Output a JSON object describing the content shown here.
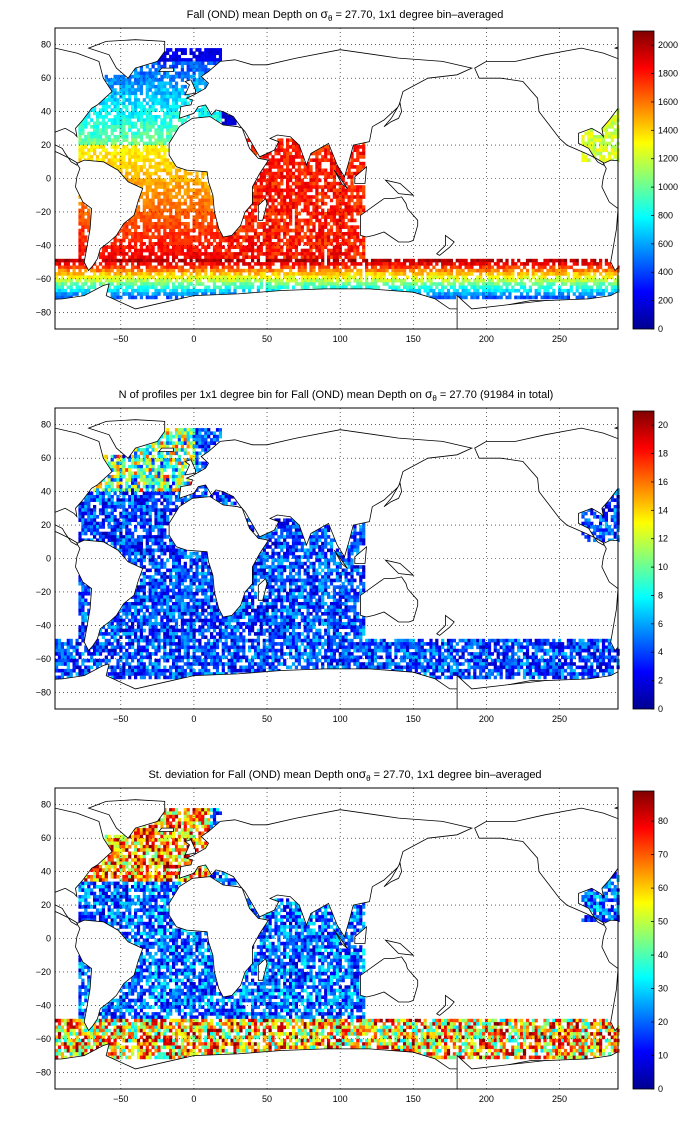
{
  "figure": {
    "land_color": "#ffffff",
    "coast_color": "#000000",
    "grid_color": "#000000"
  },
  "chart_data": [
    {
      "type": "heatmap",
      "title_pre": "Fall (OND) mean Depth on ",
      "title_sym": "σ",
      "title_sub": "θ",
      "title_post": " = 27.70, 1x1 degree bin–averaged",
      "xlabel": "",
      "ylabel": "",
      "xlim": [
        -95,
        290
      ],
      "ylim": [
        -90,
        90
      ],
      "xticks": [
        -50,
        0,
        50,
        100,
        150,
        200,
        250
      ],
      "yticks": [
        -80,
        -60,
        -40,
        -20,
        0,
        20,
        40,
        60,
        80
      ],
      "grid": true,
      "colorbar": {
        "range": [
          0,
          2100
        ],
        "ticks": [
          0,
          200,
          400,
          600,
          800,
          1000,
          1200,
          1400,
          1600,
          1800,
          2000
        ],
        "colormap": "jet",
        "placement": "right"
      },
      "field": "depth"
    },
    {
      "type": "heatmap",
      "title_pre": "N of profiles per 1x1 degree bin for Fall (OND) mean Depth on ",
      "title_sym": "σ",
      "title_sub": "θ",
      "title_post": " = 27.70 (91984 in total)",
      "xlabel": "",
      "ylabel": "",
      "xlim": [
        -95,
        290
      ],
      "ylim": [
        -90,
        90
      ],
      "xticks": [
        -50,
        0,
        50,
        100,
        150,
        200,
        250
      ],
      "yticks": [
        -80,
        -60,
        -40,
        -20,
        0,
        20,
        40,
        60,
        80
      ],
      "grid": true,
      "colorbar": {
        "range": [
          0,
          21
        ],
        "ticks": [
          0,
          2,
          4,
          6,
          8,
          10,
          12,
          14,
          16,
          18,
          20
        ],
        "colormap": "jet",
        "placement": "right"
      },
      "field": "count"
    },
    {
      "type": "heatmap",
      "title_pre": "St. deviation for Fall (OND) mean Depth on",
      "title_sym": "σ",
      "title_sub": "θ",
      "title_post": " = 27.70, 1x1 degree bin–averaged",
      "xlabel": "",
      "ylabel": "",
      "xlim": [
        -95,
        290
      ],
      "ylim": [
        -90,
        90
      ],
      "xticks": [
        -50,
        0,
        50,
        100,
        150,
        200,
        250
      ],
      "yticks": [
        -80,
        -60,
        -40,
        -20,
        0,
        20,
        40,
        60,
        80
      ],
      "grid": true,
      "colorbar": {
        "range": [
          0,
          89
        ],
        "ticks": [
          0,
          10,
          20,
          30,
          40,
          50,
          60,
          70,
          80
        ],
        "colormap": "jet",
        "placement": "right"
      },
      "field": "std"
    }
  ]
}
